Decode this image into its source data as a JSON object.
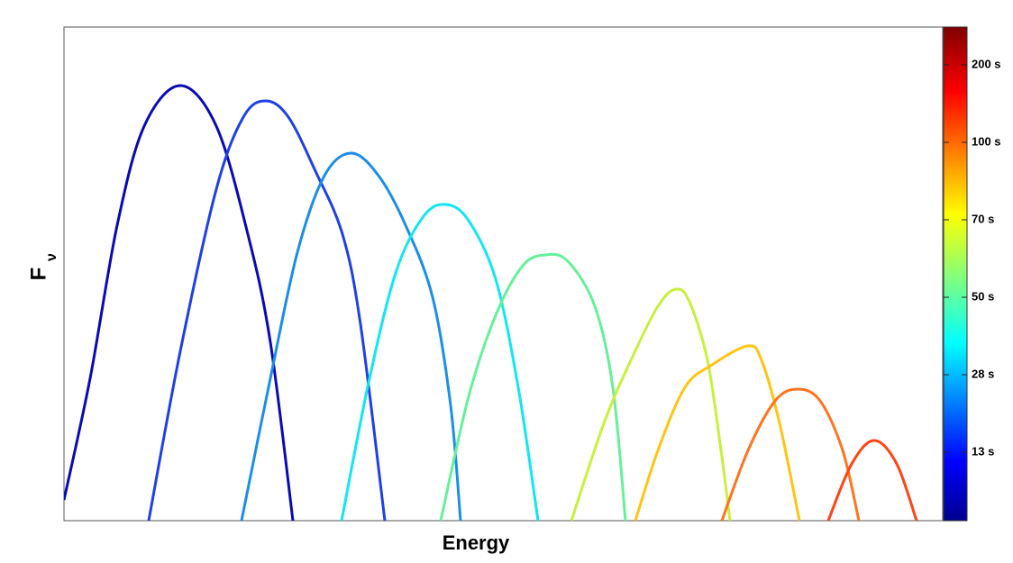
{
  "chart_data": {
    "type": "line",
    "xlabel": "Energy",
    "ylabel": {
      "main": "F",
      "sub": "ν"
    },
    "xlim": [
      0,
      975
    ],
    "ylim": [
      0,
      548
    ],
    "series": [
      {
        "color": "#0a0ab4",
        "x": [
          0,
          29,
          59,
          89,
          129,
          169,
          204,
          229,
          254
        ],
        "values": [
          23,
          158,
          328,
          438,
          483,
          438,
          318,
          198,
          0
        ]
      },
      {
        "color": "#1e40e6",
        "x": [
          94,
          129,
          169,
          199,
          224,
          249,
          279,
          309,
          329,
          356
        ],
        "values": [
          0,
          188,
          368,
          448,
          466,
          448,
          388,
          318,
          218,
          0
        ]
      },
      {
        "color": "#1a8ee8",
        "x": [
          197,
          229,
          259,
          289,
          319,
          349,
          379,
          409,
          429,
          440
        ],
        "values": [
          0,
          158,
          298,
          383,
          408,
          383,
          328,
          248,
          128,
          0
        ]
      },
      {
        "color": "#12e6f2",
        "x": [
          308,
          339,
          369,
          399,
          424,
          449,
          479,
          504,
          526
        ],
        "values": [
          0,
          158,
          278,
          338,
          351,
          333,
          268,
          148,
          0
        ]
      },
      {
        "color": "#66f09a",
        "x": [
          418,
          449,
          479,
          509,
          534,
          559,
          589,
          609,
          623
        ],
        "values": [
          0,
          138,
          228,
          283,
          295,
          288,
          238,
          148,
          0
        ]
      },
      {
        "color": "#c8f03c",
        "x": [
          563,
          599,
          629,
          659,
          679,
          694,
          714,
          729,
          739
        ],
        "values": [
          0,
          108,
          178,
          238,
          257,
          243,
          178,
          78,
          0
        ]
      },
      {
        "color": "#ffc414",
        "x": [
          634,
          659,
          689,
          719,
          759,
          774,
          794,
          816
        ],
        "values": [
          0,
          78,
          148,
          173,
          194,
          178,
          108,
          0
        ]
      },
      {
        "color": "#ff7420",
        "x": [
          730,
          759,
          789,
          814,
          839,
          864,
          882
        ],
        "values": [
          0,
          78,
          133,
          146,
          133,
          78,
          0
        ]
      },
      {
        "color": "#ff4414",
        "x": [
          848,
          874,
          899,
          924,
          946
        ],
        "values": [
          0,
          63,
          89,
          63,
          0
        ]
      }
    ],
    "colorbar": {
      "ticks": [
        {
          "value": 13,
          "label": "13 s"
        },
        {
          "value": 28,
          "label": "28 s"
        },
        {
          "value": 50,
          "label": "50 s"
        },
        {
          "value": 70,
          "label": "70 s"
        },
        {
          "value": 100,
          "label": "100 s"
        },
        {
          "value": 200,
          "label": "200 s"
        }
      ]
    }
  }
}
